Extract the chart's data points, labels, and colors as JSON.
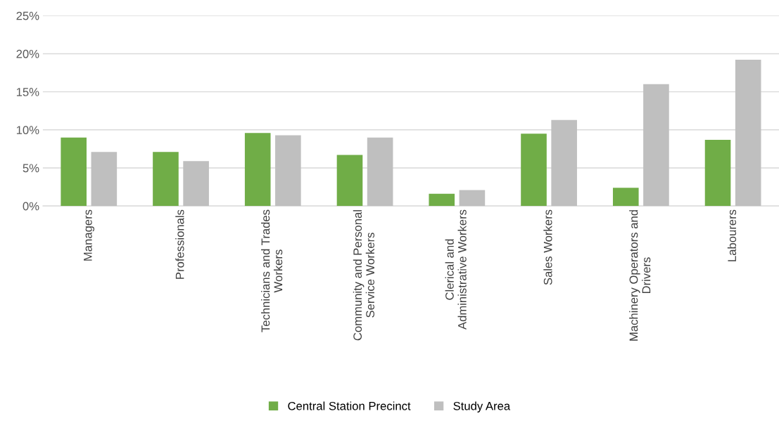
{
  "chart_data": {
    "type": "bar",
    "categories": [
      "Managers",
      "Professionals",
      "Technicians and Trades\nWorkers",
      "Community and Personal\nService Workers",
      "Clerical and\nAdministrative Workers",
      "Sales Workers",
      "Machinery Operators and\nDrivers",
      "Labourers"
    ],
    "series": [
      {
        "name": "Central Station Precinct",
        "color": "#70ad47",
        "values": [
          9.0,
          7.1,
          9.6,
          6.7,
          1.6,
          9.5,
          2.4,
          8.7
        ]
      },
      {
        "name": "Study Area",
        "color": "#bfbfbf",
        "values": [
          7.1,
          5.9,
          9.3,
          9.0,
          2.1,
          11.3,
          16.0,
          19.2
        ]
      }
    ],
    "ylim": [
      0,
      25
    ],
    "yticks": [
      {
        "value": 0,
        "label": "0%"
      },
      {
        "value": 5,
        "label": "5%"
      },
      {
        "value": 10,
        "label": "10%"
      },
      {
        "value": 15,
        "label": "15%"
      },
      {
        "value": 20,
        "label": "20%"
      },
      {
        "value": 25,
        "label": "25%"
      }
    ],
    "grid": "y",
    "legend": "bottom"
  }
}
